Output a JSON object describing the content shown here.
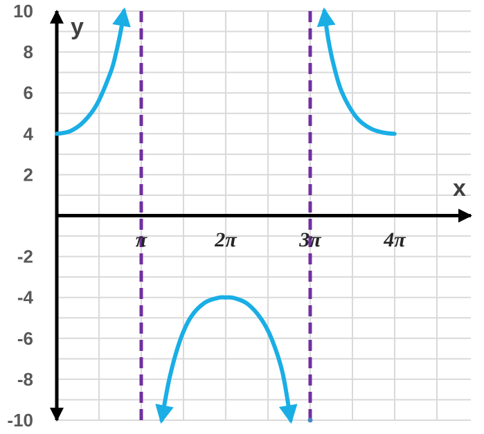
{
  "chart_data": {
    "type": "line",
    "xlabel": "x",
    "ylabel": "y",
    "xlim": [
      0,
      15.4
    ],
    "ylim": [
      -10,
      10
    ],
    "y_ticks": [
      10,
      8,
      6,
      4,
      2,
      -2,
      -4,
      -6,
      -8,
      -10
    ],
    "x_tick_labels": [
      {
        "label": "π",
        "value": 3.14159
      },
      {
        "label": "2π",
        "value": 6.28319
      },
      {
        "label": "3π",
        "value": 9.42478
      },
      {
        "label": "4π",
        "value": 12.56637
      }
    ],
    "grid": true,
    "asymptotes": [
      3.14159,
      9.42478
    ],
    "series": [
      {
        "points": [
          [
            0,
            4
          ],
          [
            0.5,
            4.13
          ],
          [
            1.0,
            4.59
          ],
          [
            1.5,
            5.46
          ],
          [
            2.0,
            7.0
          ],
          [
            2.2,
            7.93
          ],
          [
            2.4,
            9.17
          ],
          [
            2.5,
            10
          ]
        ],
        "arrow_end": true
      },
      {
        "points": [
          [
            3.9,
            -10
          ],
          [
            4.2,
            -7.9
          ],
          [
            4.6,
            -6.05
          ],
          [
            5.0,
            -4.93
          ],
          [
            5.5,
            -4.26
          ],
          [
            6.0,
            -4.02
          ],
          [
            6.28,
            -4
          ],
          [
            6.6,
            -4.03
          ],
          [
            7.1,
            -4.32
          ],
          [
            7.6,
            -5.05
          ],
          [
            8.0,
            -6.05
          ],
          [
            8.4,
            -7.7
          ],
          [
            8.7,
            -10
          ]
        ],
        "arrow_end": true,
        "arrow_start": true
      },
      {
        "points": [
          [
            12.56,
            4
          ],
          [
            12.1,
            4.07
          ],
          [
            11.6,
            4.31
          ],
          [
            11.1,
            4.88
          ],
          [
            10.6,
            6.05
          ],
          [
            10.3,
            7.35
          ],
          [
            10.1,
            8.6
          ],
          [
            9.95,
            10
          ]
        ],
        "arrow_end": true
      }
    ],
    "colors": {
      "curve": "#1aaee5",
      "asymptote": "#7030a0",
      "axis": "#000000",
      "grid": "#d9d9d9"
    }
  }
}
